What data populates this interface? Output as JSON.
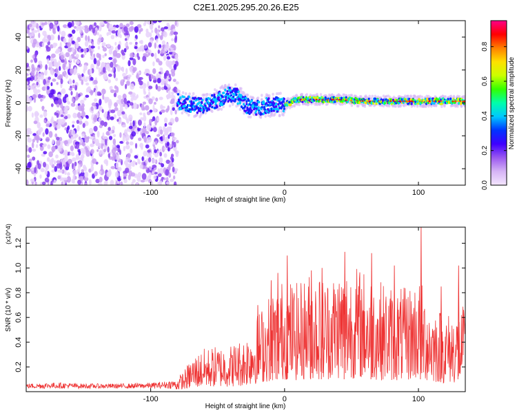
{
  "title": "C2E1.2025.295.20.26.E25",
  "colors": {
    "background": "#ffffff",
    "axis": "#000000",
    "snr_line": "#ee3333",
    "noise_dot": "#8a2be2"
  },
  "colorbar": {
    "label": "Normalized spectral amplitude",
    "range": [
      0,
      0.95
    ],
    "ticks": [
      {
        "value": 0.0,
        "label": "0.0"
      },
      {
        "value": 0.2,
        "label": "0.2"
      },
      {
        "value": 0.4,
        "label": "0.4"
      },
      {
        "value": 0.6,
        "label": "0.6"
      },
      {
        "value": 0.8,
        "label": "0.8"
      }
    ],
    "stops": [
      "#f4e6ff",
      "#d6b4f5",
      "#9b59f0",
      "#3f00ff",
      "#0033ff",
      "#00c8ff",
      "#00ffaa",
      "#33ff00",
      "#ccff00",
      "#ffe000",
      "#ff8000",
      "#ff0000",
      "#ff0088"
    ]
  },
  "chart_data": [
    {
      "type": "heatmap",
      "xlabel": "Height of straight line (km)",
      "ylabel": "Frequency (Hz)",
      "xlim": [
        -193,
        135
      ],
      "ylim": [
        -50,
        50
      ],
      "xticks": [
        {
          "value": -100,
          "label": "-100"
        },
        {
          "value": 0,
          "label": "0"
        },
        {
          "value": 100,
          "label": "100"
        }
      ],
      "yticks": [
        {
          "value": -40,
          "label": "-40"
        },
        {
          "value": -20,
          "label": "-20"
        },
        {
          "value": 0,
          "label": "0"
        },
        {
          "value": 20,
          "label": "20"
        },
        {
          "value": 40,
          "label": "40"
        }
      ],
      "noise_region_x": [
        -193,
        -80
      ],
      "signal_center": [
        {
          "x": -80,
          "f": 1
        },
        {
          "x": -70,
          "f": -1
        },
        {
          "x": -60,
          "f": -2
        },
        {
          "x": -50,
          "f": 2
        },
        {
          "x": -42,
          "f": 5
        },
        {
          "x": -35,
          "f": 4
        },
        {
          "x": -28,
          "f": -2
        },
        {
          "x": -20,
          "f": -3
        },
        {
          "x": -10,
          "f": -1
        },
        {
          "x": 0,
          "f": -1
        },
        {
          "x": 10,
          "f": 2
        },
        {
          "x": 20,
          "f": 2
        },
        {
          "x": 40,
          "f": 2
        },
        {
          "x": 60,
          "f": 1
        },
        {
          "x": 80,
          "f": 1
        },
        {
          "x": 100,
          "f": 1
        },
        {
          "x": 120,
          "f": 1
        },
        {
          "x": 135,
          "f": 1
        }
      ]
    },
    {
      "type": "line",
      "xlabel": "Height of straight line (km)",
      "ylabel": "SNR (10 * v/v)",
      "y_multiplier": "(x10^4)",
      "xlim": [
        -193,
        135
      ],
      "ylim": [
        0,
        1.33
      ],
      "xticks": [
        {
          "value": -100,
          "label": "-100"
        },
        {
          "value": 0,
          "label": "0"
        },
        {
          "value": 100,
          "label": "100"
        }
      ],
      "yticks": [
        {
          "value": 0.2,
          "label": "0.2"
        },
        {
          "value": 0.4,
          "label": "0.4"
        },
        {
          "value": 0.6,
          "label": "0.6"
        },
        {
          "value": 0.8,
          "label": "0.8"
        },
        {
          "value": 1.0,
          "label": "1.0"
        },
        {
          "value": 1.2,
          "label": "1.2"
        }
      ],
      "series": [
        {
          "name": "SNR",
          "envelope": [
            {
              "x": -193,
              "y": 0.05
            },
            {
              "x": -170,
              "y": 0.06
            },
            {
              "x": -150,
              "y": 0.05
            },
            {
              "x": -120,
              "y": 0.05
            },
            {
              "x": -95,
              "y": 0.06
            },
            {
              "x": -82,
              "y": 0.08
            },
            {
              "x": -75,
              "y": 0.15
            },
            {
              "x": -68,
              "y": 0.25
            },
            {
              "x": -60,
              "y": 0.3
            },
            {
              "x": -50,
              "y": 0.32
            },
            {
              "x": -40,
              "y": 0.33
            },
            {
              "x": -30,
              "y": 0.38
            },
            {
              "x": -20,
              "y": 0.55
            },
            {
              "x": -10,
              "y": 0.7
            },
            {
              "x": 0,
              "y": 0.8
            },
            {
              "x": 10,
              "y": 0.75
            },
            {
              "x": 20,
              "y": 0.85
            },
            {
              "x": 30,
              "y": 0.8
            },
            {
              "x": 45,
              "y": 0.9
            },
            {
              "x": 60,
              "y": 0.85
            },
            {
              "x": 75,
              "y": 0.75
            },
            {
              "x": 90,
              "y": 0.72
            },
            {
              "x": 100,
              "y": 0.8
            },
            {
              "x": 110,
              "y": 0.62
            },
            {
              "x": 122,
              "y": 0.55
            },
            {
              "x": 135,
              "y": 0.6
            }
          ],
          "peaks": [
            {
              "x": 102,
              "y": 1.33
            },
            {
              "x": 45,
              "y": 1.13
            },
            {
              "x": 65,
              "y": 1.12
            },
            {
              "x": 2,
              "y": 1.1
            },
            {
              "x": 28,
              "y": 1.0
            },
            {
              "x": 82,
              "y": 1.02
            },
            {
              "x": 130,
              "y": 1.02
            },
            {
              "x": -5,
              "y": 0.96
            },
            {
              "x": 20,
              "y": 0.98
            },
            {
              "x": 117,
              "y": 0.85
            },
            {
              "x": -20,
              "y": 0.7
            },
            {
              "x": -10,
              "y": 0.9
            }
          ]
        }
      ]
    }
  ]
}
